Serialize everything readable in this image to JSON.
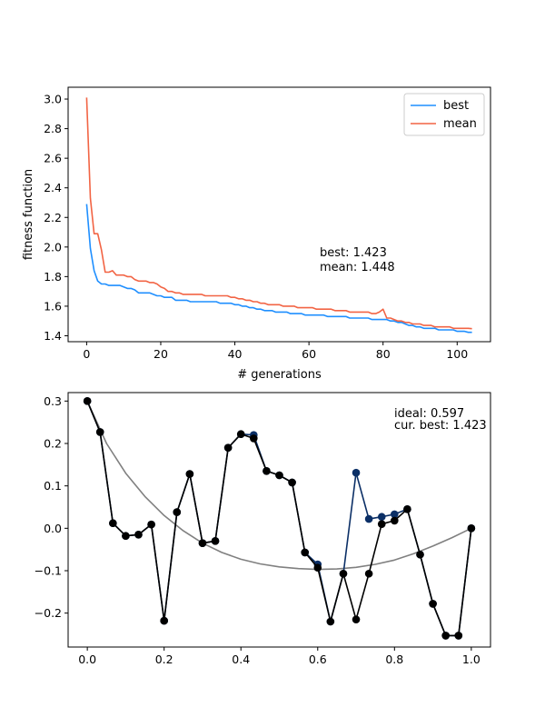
{
  "chart_data": [
    {
      "type": "line",
      "xlabel": "# generations",
      "ylabel": "fitness function",
      "xlim": [
        -5,
        109
      ],
      "ylim": [
        1.36,
        3.08
      ],
      "xticks": [
        0,
        20,
        40,
        60,
        80,
        100
      ],
      "yticks": [
        1.4,
        1.6,
        1.8,
        2.0,
        2.2,
        2.4,
        2.6,
        2.8,
        3.0
      ],
      "legend_location": "top-right",
      "annotation": [
        "best: 1.423",
        "mean: 1.448"
      ],
      "series": [
        {
          "name": "best",
          "color": "#1f8fff",
          "x": [
            0,
            1,
            2,
            3,
            4,
            5,
            6,
            7,
            8,
            9,
            10,
            11,
            12,
            13,
            14,
            15,
            16,
            17,
            18,
            19,
            20,
            21,
            22,
            23,
            24,
            25,
            26,
            27,
            28,
            29,
            30,
            31,
            32,
            33,
            34,
            35,
            36,
            37,
            38,
            39,
            40,
            41,
            42,
            43,
            44,
            45,
            46,
            47,
            48,
            49,
            50,
            51,
            52,
            53,
            54,
            55,
            56,
            57,
            58,
            59,
            60,
            61,
            62,
            63,
            64,
            65,
            66,
            67,
            68,
            69,
            70,
            71,
            72,
            73,
            74,
            75,
            76,
            77,
            78,
            79,
            80,
            81,
            82,
            83,
            84,
            85,
            86,
            87,
            88,
            89,
            90,
            91,
            92,
            93,
            94,
            95,
            96,
            97,
            98,
            99,
            100,
            101,
            102,
            103,
            104
          ],
          "values": [
            2.29,
            1.99,
            1.84,
            1.77,
            1.75,
            1.75,
            1.74,
            1.74,
            1.74,
            1.74,
            1.73,
            1.72,
            1.72,
            1.71,
            1.69,
            1.69,
            1.69,
            1.69,
            1.68,
            1.67,
            1.67,
            1.66,
            1.66,
            1.66,
            1.64,
            1.64,
            1.64,
            1.64,
            1.63,
            1.63,
            1.63,
            1.63,
            1.63,
            1.63,
            1.63,
            1.63,
            1.62,
            1.62,
            1.62,
            1.62,
            1.61,
            1.61,
            1.6,
            1.6,
            1.59,
            1.59,
            1.58,
            1.58,
            1.57,
            1.57,
            1.57,
            1.56,
            1.56,
            1.56,
            1.56,
            1.55,
            1.55,
            1.55,
            1.55,
            1.54,
            1.54,
            1.54,
            1.54,
            1.54,
            1.54,
            1.53,
            1.53,
            1.53,
            1.53,
            1.53,
            1.53,
            1.52,
            1.52,
            1.52,
            1.52,
            1.52,
            1.52,
            1.51,
            1.51,
            1.51,
            1.51,
            1.51,
            1.5,
            1.5,
            1.49,
            1.49,
            1.48,
            1.47,
            1.47,
            1.46,
            1.46,
            1.45,
            1.45,
            1.45,
            1.45,
            1.44,
            1.44,
            1.44,
            1.44,
            1.44,
            1.43,
            1.43,
            1.43,
            1.423,
            1.423
          ]
        },
        {
          "name": "mean",
          "color": "#f26444",
          "x": [
            0,
            1,
            2,
            3,
            4,
            5,
            6,
            7,
            8,
            9,
            10,
            11,
            12,
            13,
            14,
            15,
            16,
            17,
            18,
            19,
            20,
            21,
            22,
            23,
            24,
            25,
            26,
            27,
            28,
            29,
            30,
            31,
            32,
            33,
            34,
            35,
            36,
            37,
            38,
            39,
            40,
            41,
            42,
            43,
            44,
            45,
            46,
            47,
            48,
            49,
            50,
            51,
            52,
            53,
            54,
            55,
            56,
            57,
            58,
            59,
            60,
            61,
            62,
            63,
            64,
            65,
            66,
            67,
            68,
            69,
            70,
            71,
            72,
            73,
            74,
            75,
            76,
            77,
            78,
            79,
            80,
            81,
            82,
            83,
            84,
            85,
            86,
            87,
            88,
            89,
            90,
            91,
            92,
            93,
            94,
            95,
            96,
            97,
            98,
            99,
            100,
            101,
            102,
            103,
            104
          ],
          "values": [
            3.01,
            2.33,
            2.09,
            2.09,
            1.98,
            1.83,
            1.83,
            1.84,
            1.81,
            1.81,
            1.81,
            1.8,
            1.8,
            1.78,
            1.77,
            1.77,
            1.77,
            1.76,
            1.76,
            1.75,
            1.73,
            1.72,
            1.7,
            1.7,
            1.69,
            1.69,
            1.68,
            1.68,
            1.68,
            1.68,
            1.68,
            1.68,
            1.67,
            1.67,
            1.67,
            1.67,
            1.67,
            1.67,
            1.67,
            1.66,
            1.66,
            1.65,
            1.65,
            1.64,
            1.64,
            1.63,
            1.63,
            1.62,
            1.62,
            1.61,
            1.61,
            1.61,
            1.61,
            1.6,
            1.6,
            1.6,
            1.6,
            1.59,
            1.59,
            1.59,
            1.59,
            1.59,
            1.58,
            1.58,
            1.58,
            1.58,
            1.58,
            1.57,
            1.57,
            1.57,
            1.57,
            1.56,
            1.56,
            1.56,
            1.56,
            1.56,
            1.56,
            1.55,
            1.55,
            1.56,
            1.58,
            1.52,
            1.52,
            1.51,
            1.5,
            1.5,
            1.49,
            1.49,
            1.48,
            1.48,
            1.48,
            1.47,
            1.47,
            1.47,
            1.46,
            1.46,
            1.46,
            1.46,
            1.46,
            1.45,
            1.45,
            1.45,
            1.45,
            1.45,
            1.448
          ]
        }
      ]
    },
    {
      "type": "line",
      "xlabel": "",
      "ylabel": "",
      "xlim": [
        -0.05,
        1.05
      ],
      "ylim": [
        -0.28,
        0.32
      ],
      "xticks": [
        0.0,
        0.2,
        0.4,
        0.6,
        0.8,
        1.0
      ],
      "yticks": [
        -0.2,
        -0.1,
        0.0,
        0.1,
        0.2,
        0.3
      ],
      "annotation": [
        "ideal: 0.597",
        "cur. best: 1.423"
      ],
      "series": [
        {
          "name": "",
          "role": "ideal curve",
          "color": "#808080",
          "x": [
            0.0,
            0.05,
            0.1,
            0.15,
            0.2,
            0.25,
            0.3,
            0.35,
            0.4,
            0.45,
            0.5,
            0.55,
            0.6,
            0.65,
            0.7,
            0.75,
            0.8,
            0.85,
            0.9,
            0.95,
            1.0
          ],
          "values": [
            0.3,
            0.2,
            0.13,
            0.075,
            0.03,
            -0.006,
            -0.035,
            -0.057,
            -0.073,
            -0.084,
            -0.091,
            -0.095,
            -0.097,
            -0.096,
            -0.092,
            -0.085,
            -0.075,
            -0.06,
            -0.042,
            -0.022,
            0.0
          ]
        },
        {
          "name": "",
          "role": "current candidate",
          "color": "#0b2f66",
          "marker": "circle",
          "x": [
            0.0,
            0.0333,
            0.0667,
            0.1,
            0.1333,
            0.1667,
            0.2,
            0.2333,
            0.2667,
            0.3,
            0.3333,
            0.3667,
            0.4,
            0.4333,
            0.4667,
            0.5,
            0.5333,
            0.5667,
            0.6,
            0.6333,
            0.6667,
            0.7,
            0.7333,
            0.7667,
            0.8,
            0.8333,
            0.8667,
            0.9,
            0.9333,
            0.9667,
            1.0
          ],
          "values": [
            0.3,
            0.227,
            0.012,
            -0.018,
            -0.015,
            0.009,
            -0.218,
            0.038,
            0.128,
            -0.035,
            -0.03,
            0.19,
            0.222,
            0.22,
            0.135,
            0.125,
            0.108,
            -0.057,
            -0.085,
            -0.22,
            -0.107,
            0.131,
            0.022,
            0.027,
            0.033,
            0.045,
            -0.062,
            -0.178,
            -0.253,
            -0.253,
            0.0
          ]
        },
        {
          "name": "",
          "role": "best individual",
          "color": "#000000",
          "marker": "circle",
          "x": [
            0.0,
            0.0333,
            0.0667,
            0.1,
            0.1333,
            0.1667,
            0.2,
            0.2333,
            0.2667,
            0.3,
            0.3333,
            0.3667,
            0.4,
            0.4333,
            0.4667,
            0.5,
            0.5333,
            0.5667,
            0.6,
            0.6333,
            0.6667,
            0.7,
            0.7333,
            0.7667,
            0.8,
            0.8333,
            0.8667,
            0.9,
            0.9333,
            0.9667,
            1.0
          ],
          "values": [
            0.3,
            0.227,
            0.012,
            -0.018,
            -0.015,
            0.009,
            -0.218,
            0.038,
            0.128,
            -0.035,
            -0.03,
            0.19,
            0.222,
            0.212,
            0.135,
            0.125,
            0.108,
            -0.057,
            -0.093,
            -0.22,
            -0.107,
            -0.215,
            -0.107,
            0.01,
            0.018,
            0.045,
            -0.062,
            -0.178,
            -0.253,
            -0.253,
            0.0
          ]
        }
      ]
    }
  ]
}
